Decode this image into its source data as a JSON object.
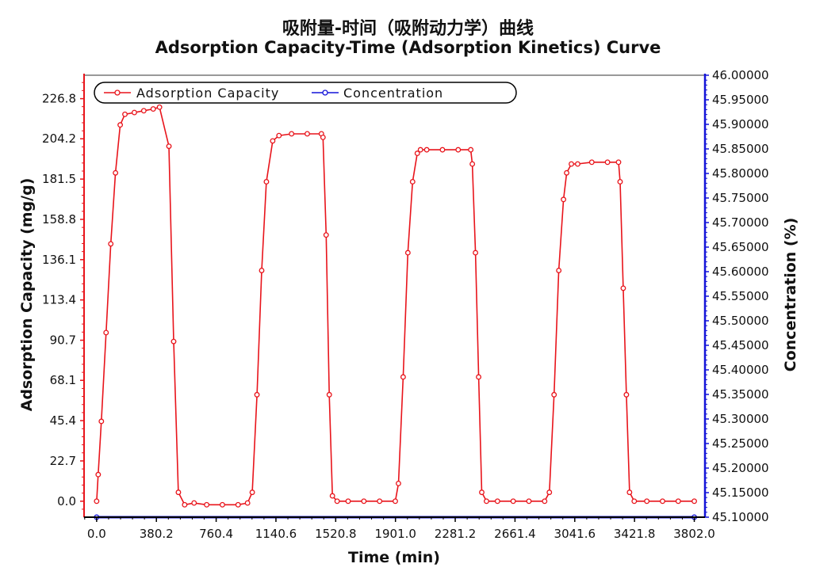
{
  "chart_data": {
    "type": "line",
    "title": "吸附量-时间（吸附动力学）曲线",
    "subtitle": "Adsorption Capacity-Time (Adsorption Kinetics) Curve",
    "xlabel": "Time (min)",
    "ylabel": "Adsorption Capacity (mg/g)",
    "y2label": "Concentration (%)",
    "xlim": [
      -80,
      3870
    ],
    "ylim": [
      -9,
      240
    ],
    "y2lim": [
      45.1,
      46.0
    ],
    "xticks": [
      "0.0",
      "380.2",
      "760.4",
      "1140.6",
      "1520.8",
      "1901.0",
      "2281.2",
      "2661.4",
      "3041.6",
      "3421.8",
      "3802.0"
    ],
    "yticks": [
      "0.0",
      "22.7",
      "45.4",
      "68.1",
      "90.7",
      "113.4",
      "136.1",
      "158.8",
      "181.5",
      "204.2",
      "226.8"
    ],
    "y2ticks": [
      "45.10000",
      "45.15000",
      "45.20000",
      "45.25000",
      "45.30000",
      "45.35000",
      "45.40000",
      "45.45000",
      "45.50000",
      "45.55000",
      "45.60000",
      "45.65000",
      "45.70000",
      "45.75000",
      "45.80000",
      "45.85000",
      "45.90000",
      "45.95000",
      "46.00000"
    ],
    "legend_position": "top-left",
    "grid": false,
    "series": [
      {
        "name": "Adsorption Capacity",
        "color": "#e8141b",
        "axis": "left",
        "x": [
          0,
          10,
          30,
          60,
          90,
          120,
          150,
          180,
          240,
          300,
          360,
          400,
          460,
          490,
          520,
          560,
          620,
          700,
          800,
          900,
          960,
          990,
          1020,
          1050,
          1080,
          1120,
          1160,
          1240,
          1340,
          1430,
          1440,
          1460,
          1480,
          1500,
          1530,
          1600,
          1700,
          1800,
          1900,
          1920,
          1950,
          1980,
          2010,
          2040,
          2060,
          2100,
          2200,
          2300,
          2380,
          2390,
          2410,
          2430,
          2450,
          2480,
          2550,
          2650,
          2750,
          2850,
          2880,
          2910,
          2940,
          2970,
          2990,
          3020,
          3060,
          3150,
          3250,
          3320,
          3330,
          3350,
          3370,
          3390,
          3420,
          3500,
          3600,
          3700,
          3802
        ],
        "values": [
          0,
          15,
          45,
          95,
          145,
          185,
          212,
          218,
          219,
          220,
          221,
          222,
          200,
          90,
          5,
          -2,
          -1,
          -2,
          -2,
          -2,
          -1,
          5,
          60,
          130,
          180,
          203,
          206,
          207,
          207,
          207,
          205,
          150,
          60,
          3,
          0,
          0,
          0,
          0,
          0,
          10,
          70,
          140,
          180,
          196,
          198,
          198,
          198,
          198,
          198,
          190,
          140,
          70,
          5,
          0,
          0,
          0,
          0,
          0,
          5,
          60,
          130,
          170,
          185,
          190,
          190,
          191,
          191,
          191,
          180,
          120,
          60,
          5,
          0,
          0,
          0,
          0,
          0
        ]
      },
      {
        "name": "Concentration",
        "color": "#1414d8",
        "axis": "right",
        "x": [
          0,
          3802
        ],
        "values": [
          45.1,
          45.1
        ]
      }
    ]
  }
}
